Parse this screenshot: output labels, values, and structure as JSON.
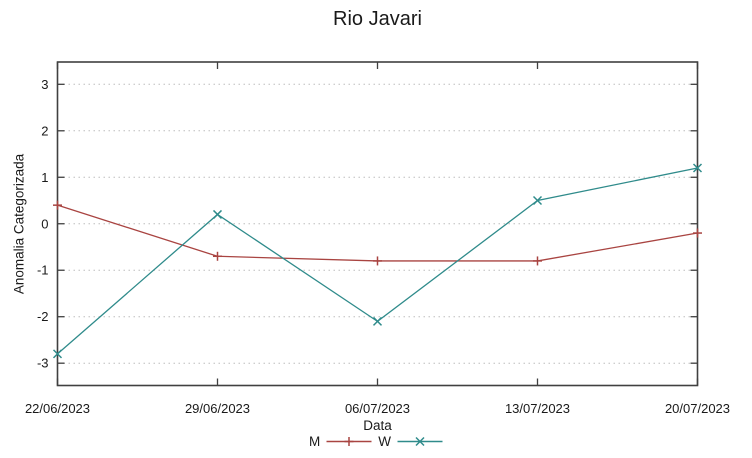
{
  "page": {
    "background": "#ffffff"
  },
  "chart_data": {
    "type": "line",
    "title": "Rio Javari",
    "xlabel": "Data",
    "ylabel": "Anomalia Categorizada",
    "categories": [
      "22/06/2023",
      "29/06/2023",
      "06/07/2023",
      "13/07/2023",
      "20/07/2023"
    ],
    "series": [
      {
        "name": "M",
        "marker": "plus",
        "color": "#a94441",
        "values": [
          0.4,
          -0.7,
          -0.8,
          -0.8,
          -0.2
        ]
      },
      {
        "name": "W",
        "marker": "cross",
        "color": "#2f8b8b",
        "values": [
          -2.8,
          0.2,
          -2.1,
          0.5,
          1.2
        ]
      }
    ],
    "yticks": [
      -3,
      -2,
      -1,
      0,
      1,
      2,
      3
    ],
    "ylim": [
      -3.48,
      3.48
    ],
    "grid": "horizontal-dotted",
    "ticks": "mirrored-inward",
    "legend_position": "bottom-center",
    "colors": {
      "axis_border": "#404040",
      "grid_line": "#bdbdbd",
      "text": "#1a1a1a",
      "background": "#ffffff"
    }
  }
}
